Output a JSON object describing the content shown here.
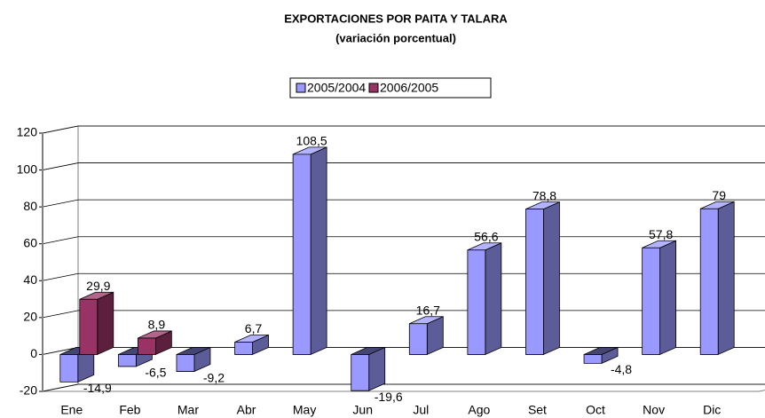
{
  "chart_data": {
    "type": "bar3d",
    "title": "EXPORTACIONES POR PAITA Y TALARA",
    "subtitle": "(variación porcentual)",
    "categories": [
      "Ene",
      "Feb",
      "Mar",
      "Abr",
      "May",
      "Jun",
      "Jul",
      "Ago",
      "Set",
      "Oct",
      "Nov",
      "Dic"
    ],
    "series": [
      {
        "name": "2005/2004",
        "color": "#9999ff",
        "values": [
          -14.9,
          -6.5,
          -9.2,
          6.7,
          108.5,
          -19.6,
          16.7,
          56.6,
          78.8,
          -4.8,
          57.8,
          79
        ],
        "value_labels": [
          "-14,9",
          "-6,5",
          "-9,2",
          "6,7",
          "108,5",
          "-19,6",
          "16,7",
          "56,6",
          "78,8",
          "-4,8",
          "57,8",
          "79"
        ]
      },
      {
        "name": "2006/2005",
        "color": "#993366",
        "values": [
          29.9,
          8.9,
          null,
          null,
          null,
          null,
          null,
          null,
          null,
          null,
          null,
          null
        ],
        "value_labels": [
          "29,9",
          "8,9",
          null,
          null,
          null,
          null,
          null,
          null,
          null,
          null,
          null,
          null
        ]
      }
    ],
    "ylim": [
      -20,
      120
    ],
    "yticks": [
      -20,
      0,
      20,
      40,
      60,
      80,
      100,
      120
    ],
    "grid": true,
    "legend": "top"
  }
}
